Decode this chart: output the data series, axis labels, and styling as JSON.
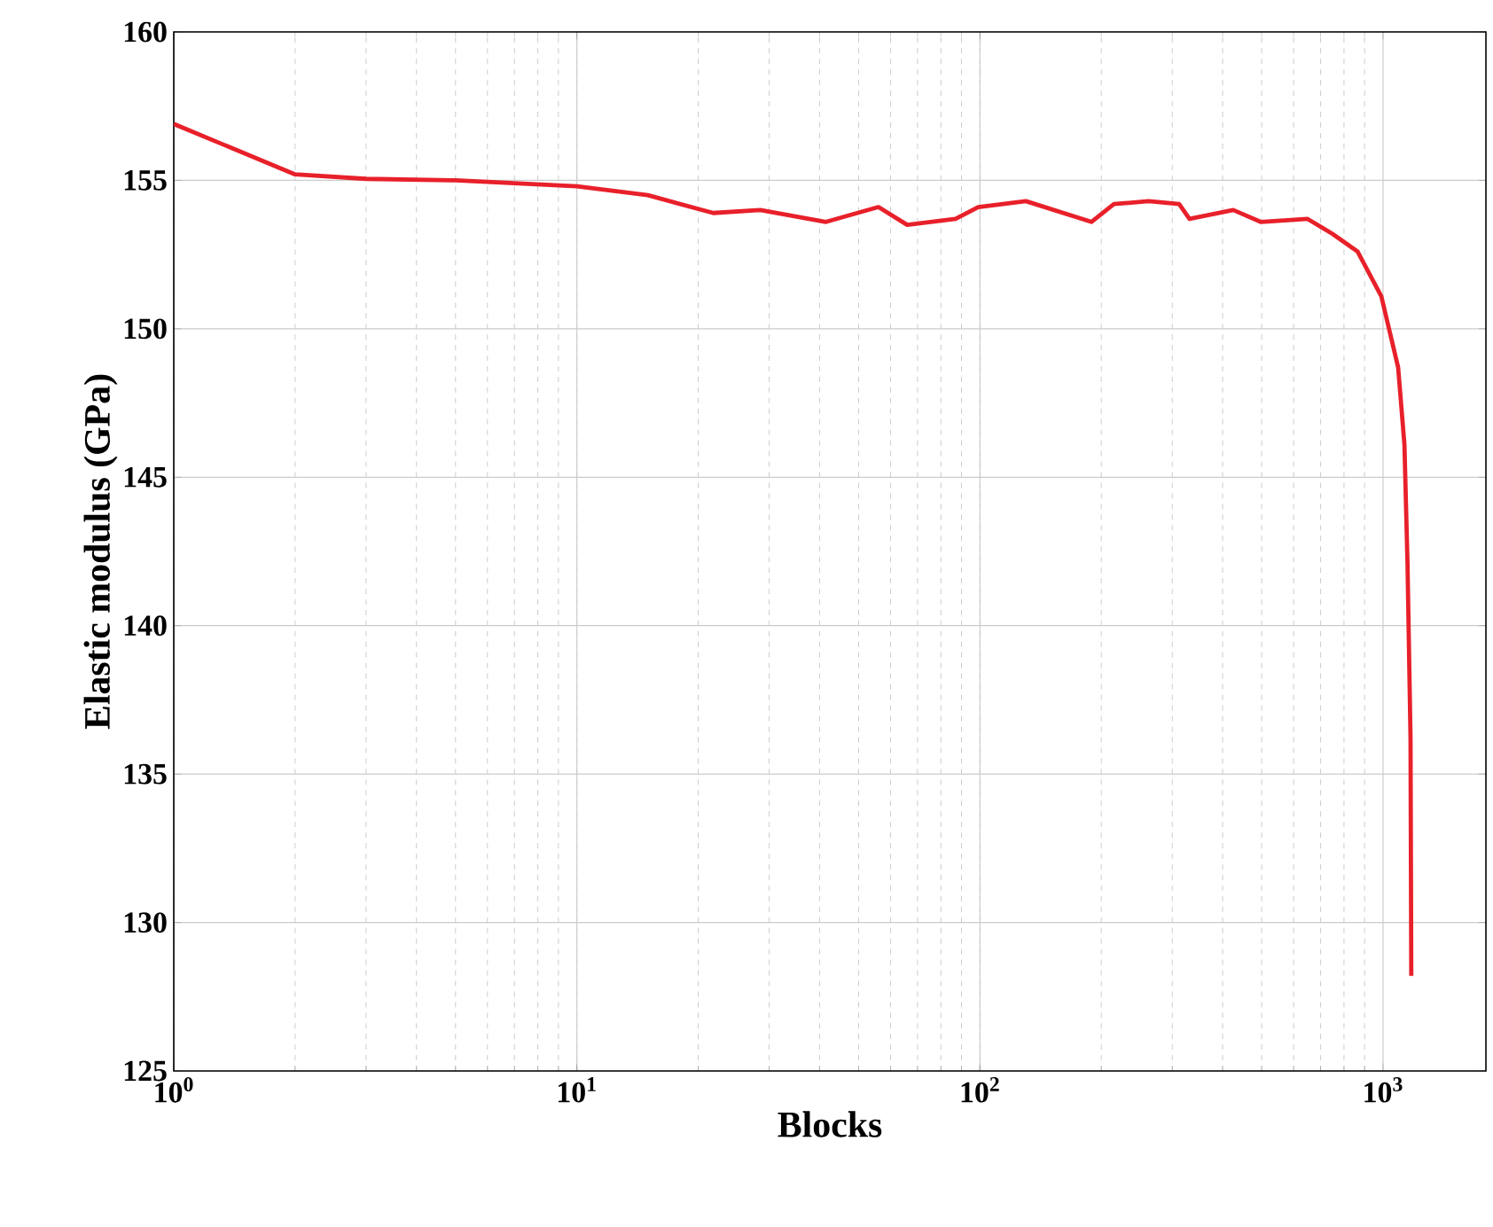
{
  "chart_data": {
    "type": "line",
    "xlabel": "Blocks",
    "ylabel": "Elastic modulus (GPa)",
    "log": "x",
    "grid": true,
    "xlim": [
      1,
      1800
    ],
    "ylim": [
      125,
      160
    ],
    "xticks": [
      {
        "value": 1,
        "label": "10$^{0}$"
      },
      {
        "value": 10,
        "label": "10$^{1}$"
      },
      {
        "value": 100,
        "label": "10$^{2}$"
      },
      {
        "value": 1000,
        "label": "10$^{3}$"
      }
    ],
    "yticks": [
      125,
      130,
      135,
      140,
      145,
      150,
      155,
      160
    ],
    "series": [
      {
        "color": "#e8202a",
        "x": [
          1,
          2,
          3,
          5,
          10,
          15,
          21.8,
          28.5,
          41.5,
          56,
          66,
          87,
          99,
          130,
          189,
          215,
          262,
          312,
          331,
          425,
          497,
          650,
          749,
          865,
          990,
          1090,
          1130,
          1150,
          1170,
          1175
        ],
        "values": [
          156.9,
          155.2,
          155.05,
          155.0,
          154.8,
          154.5,
          153.9,
          154.0,
          153.6,
          154.1,
          153.5,
          153.7,
          154.1,
          154.3,
          153.6,
          154.2,
          154.3,
          154.2,
          153.7,
          154.0,
          153.6,
          153.7,
          153.2,
          152.6,
          151.1,
          148.7,
          146.1,
          142.1,
          136.2,
          128.2
        ]
      }
    ]
  }
}
